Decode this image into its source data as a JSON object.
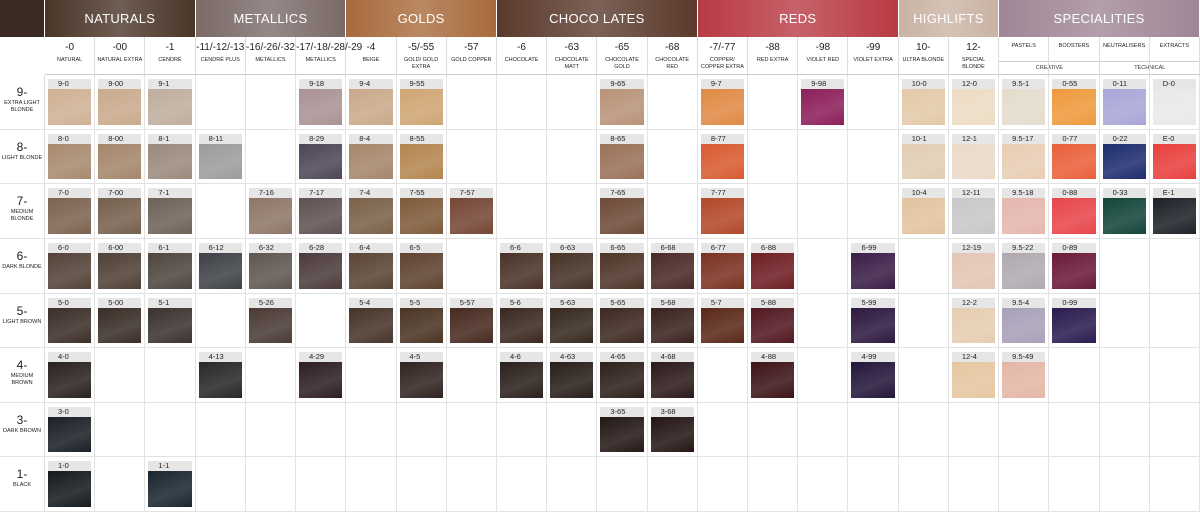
{
  "groups": [
    {
      "name": "NATURALS",
      "color": "#4a3528",
      "columns": [
        {
          "code": "-0",
          "name": "NATURAL"
        },
        {
          "code": "-00",
          "name": "NATURAL EXTRA"
        },
        {
          "code": "-1",
          "name": "CENDRÉ"
        }
      ]
    },
    {
      "name": "METALLICS",
      "color": "#7a6a68",
      "columns": [
        {
          "code": "-11/-12/-13",
          "name": "CENDRÉ PLUS"
        },
        {
          "code": "-16/-26/-32",
          "name": "METALLICS"
        },
        {
          "code": "-17/-18/-28/-29",
          "name": "METALLICS"
        }
      ]
    },
    {
      "name": "GOLDS",
      "color": "#a86a3c",
      "columns": [
        {
          "code": "-4",
          "name": "BEIGE"
        },
        {
          "code": "-5/-55",
          "name": "GOLD/ GOLD EXTRA"
        },
        {
          "code": "-57",
          "name": "GOLD COPPER"
        }
      ]
    },
    {
      "name": "CHOCO LATES",
      "color": "#5a3a2c",
      "columns": [
        {
          "code": "-6",
          "name": "CHOCOLATE"
        },
        {
          "code": "-63",
          "name": "CHOCOLATE MATT"
        },
        {
          "code": "-65",
          "name": "CHOCOLATE GOLD"
        },
        {
          "code": "-68",
          "name": "CHOCOLATE RED"
        }
      ]
    },
    {
      "name": "REDS",
      "color": "#b83a44",
      "columns": [
        {
          "code": "-7/-77",
          "name": "COPPER/ COPPER EXTRA"
        },
        {
          "code": "-88",
          "name": "RED EXTRA"
        },
        {
          "code": "-98",
          "name": "VIOLET RED"
        },
        {
          "code": "-99",
          "name": "VIOLET EXTRA"
        }
      ]
    },
    {
      "name": "HIGHLIFTS",
      "color": "#c9b3a3",
      "columns": [
        {
          "code": "10-",
          "name": "ULTRA BLONDE"
        },
        {
          "code": "12-",
          "name": "SPECIAL BLONDE"
        }
      ]
    },
    {
      "name": "SPECIALITIES",
      "color": "#a08696",
      "subgroups": [
        {
          "name": "CREATIVE",
          "columns": [
            {
              "name": "PASTELS"
            },
            {
              "name": "BOOSTERS"
            }
          ]
        },
        {
          "name": "TECHNICAL",
          "columns": [
            {
              "name": "NEUTRALISERS"
            },
            {
              "name": "EXTRACTS"
            }
          ]
        }
      ]
    }
  ],
  "rows": [
    {
      "level": "9-",
      "name": "EXTRA LIGHT BLONDE",
      "cells": [
        [
          "9-0",
          "#cfb194"
        ],
        [
          "9-00",
          "#c9aa8c"
        ],
        [
          "9-1",
          "#bfae9e"
        ],
        null,
        null,
        [
          "9-18",
          "#a99294"
        ],
        [
          "9-4",
          "#caa98a"
        ],
        [
          "9-55",
          "#d0a574"
        ],
        null,
        null,
        null,
        [
          "9-65",
          "#b89378"
        ],
        null,
        [
          "9-7",
          "#e08a45"
        ],
        null,
        [
          "9-98",
          "#8c1f5a"
        ],
        null,
        [
          "10-0",
          "#e3c9a8"
        ],
        [
          "12-0",
          "#eddcc4"
        ],
        [
          "9.5-1",
          "#e4dccd"
        ],
        [
          "0-55",
          "#ee9a3c"
        ],
        [
          "0-11",
          "#a9a6d8"
        ],
        [
          "D-0",
          "#e9e9ea"
        ]
      ]
    },
    {
      "level": "8-",
      "name": "LIGHT BLONDE",
      "cells": [
        [
          "8-0",
          "#a88a6e"
        ],
        [
          "8-00",
          "#a4866a"
        ],
        [
          "8-1",
          "#9a8a7c"
        ],
        [
          "8-11",
          "#9c9c9e"
        ],
        null,
        [
          "8-29",
          "#4e4658"
        ],
        [
          "8-4",
          "#a5866a"
        ],
        [
          "8-55",
          "#b48650"
        ],
        null,
        null,
        null,
        [
          "8-65",
          "#9a7158"
        ],
        null,
        [
          "8-77",
          "#d85b30"
        ],
        null,
        null,
        null,
        [
          "10-1",
          "#e2cdb4"
        ],
        [
          "12-1",
          "#eadac8"
        ],
        [
          "9.5-17",
          "#e8cdb3"
        ],
        [
          "0-77",
          "#e9603a"
        ],
        [
          "0-22",
          "#1e2d6e"
        ],
        [
          "E-0",
          "#e8403e"
        ]
      ]
    },
    {
      "level": "7-",
      "name": "MEDIUM BLONDE",
      "cells": [
        [
          "7-0",
          "#7c6350"
        ],
        [
          "7-00",
          "#76604e"
        ],
        [
          "7-1",
          "#6d6258"
        ],
        null,
        [
          "7-16",
          "#8e7668"
        ],
        [
          "7-17",
          "#5e5250"
        ],
        [
          "7-4",
          "#7a6148"
        ],
        [
          "7-55",
          "#7e5a3a"
        ],
        [
          "7-57",
          "#754634"
        ],
        null,
        null,
        [
          "7-65",
          "#6e4a38"
        ],
        null,
        [
          "7-77",
          "#b3482a"
        ],
        null,
        null,
        null,
        [
          "10-4",
          "#e3c39f"
        ],
        [
          "12-11",
          "#c9c7c9"
        ],
        [
          "9.5-18",
          "#e5b6ae"
        ],
        [
          "0-88",
          "#e8464a"
        ],
        [
          "0-33",
          "#13453a"
        ],
        [
          "E-1",
          "#1d2228"
        ]
      ]
    },
    {
      "level": "6-",
      "name": "DARK BLONDE",
      "cells": [
        [
          "6-0",
          "#544238"
        ],
        [
          "6-00",
          "#504036"
        ],
        [
          "6-1",
          "#4e463f"
        ],
        [
          "6-12",
          "#3e4246"
        ],
        [
          "6-32",
          "#5f5650"
        ],
        [
          "6-28",
          "#4c3b3c"
        ],
        [
          "6-4",
          "#5a4434"
        ],
        [
          "6-5",
          "#5e4230"
        ],
        null,
        [
          "6-6",
          "#4a3328"
        ],
        [
          "6-63",
          "#443226"
        ],
        [
          "6-65",
          "#4e3428"
        ],
        [
          "6-68",
          "#4a2a26"
        ],
        [
          "6-77",
          "#7a3222"
        ],
        [
          "6-88",
          "#6e1e24"
        ],
        null,
        [
          "6-99",
          "#3a1e46"
        ],
        null,
        [
          "12-19",
          "#e3c6b5"
        ],
        [
          "9.5-22",
          "#b0aab0"
        ],
        [
          "0-89",
          "#6a1a3a"
        ],
        null,
        null
      ]
    },
    {
      "level": "5-",
      "name": "LIGHT BROWN",
      "cells": [
        [
          "5-0",
          "#3c2e28"
        ],
        [
          "5-00",
          "#3a2d26"
        ],
        [
          "5-1",
          "#3a322e"
        ],
        null,
        [
          "5-26",
          "#4a3a34"
        ],
        null,
        [
          "5-4",
          "#463428"
        ],
        [
          "5-5",
          "#4a3424"
        ],
        [
          "5-57",
          "#472a20"
        ],
        [
          "5-6",
          "#3a2820"
        ],
        [
          "5-63",
          "#36281e"
        ],
        [
          "5-65",
          "#3c2820"
        ],
        [
          "5-68",
          "#3a221e"
        ],
        [
          "5-7",
          "#5a2818"
        ],
        [
          "5-88",
          "#521820"
        ],
        null,
        [
          "5-99",
          "#2e1840"
        ],
        null,
        [
          "12-2",
          "#e6cdb0"
        ],
        [
          "9.5-4",
          "#a8a0b8"
        ],
        [
          "0-99",
          "#2a1c50"
        ],
        null,
        null
      ]
    },
    {
      "level": "4-",
      "name": "MEDIUM BROWN",
      "cells": [
        [
          "4-0",
          "#2a2220"
        ],
        null,
        null,
        [
          "4-13",
          "#2a2826"
        ],
        null,
        [
          "4-29",
          "#2e1e26"
        ],
        null,
        [
          "4-5",
          "#302420"
        ],
        null,
        [
          "4-6",
          "#2a201c"
        ],
        [
          "4-63",
          "#281e1a"
        ],
        [
          "4-65",
          "#2c201a"
        ],
        [
          "4-68",
          "#2c1a1a"
        ],
        null,
        [
          "4-88",
          "#3c1418"
        ],
        null,
        [
          "4-99",
          "#24163a"
        ],
        null,
        [
          "12-4",
          "#e6c6a0"
        ],
        [
          "9.5-49",
          "#e3b7a6"
        ],
        null,
        null,
        null
      ]
    },
    {
      "level": "3-",
      "name": "DARK BROWN",
      "cells": [
        [
          "3-0",
          "#1a2026"
        ],
        null,
        null,
        null,
        null,
        null,
        null,
        null,
        null,
        null,
        null,
        [
          "3-65",
          "#241816"
        ],
        [
          "3-68",
          "#241614"
        ],
        null,
        null,
        null,
        null,
        null,
        null,
        null,
        null,
        null,
        null
      ]
    },
    {
      "level": "1-",
      "name": "BLACK",
      "cells": [
        [
          "1-0",
          "#141a1e"
        ],
        null,
        [
          "1-1",
          "#1a2630"
        ],
        null,
        null,
        null,
        null,
        null,
        null,
        null,
        null,
        null,
        null,
        null,
        null,
        null,
        null,
        null,
        null,
        null,
        null,
        null,
        null
      ]
    }
  ]
}
